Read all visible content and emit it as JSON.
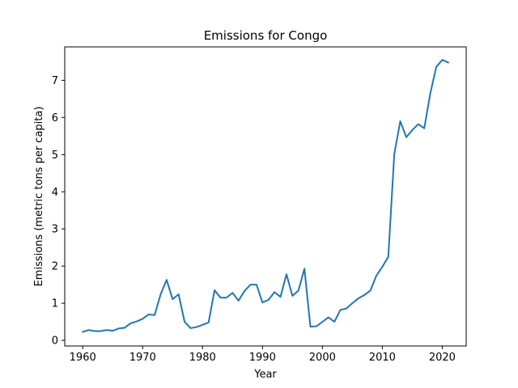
{
  "chart_data": {
    "type": "line",
    "title": "Emissions for Congo",
    "xlabel": "Year",
    "ylabel": "Emissions (metric tons per capita)",
    "xlim": [
      1957,
      2024
    ],
    "ylim": [
      -0.15,
      7.9
    ],
    "xticks": [
      1960,
      1970,
      1980,
      1990,
      2000,
      2010,
      2020
    ],
    "yticks": [
      0,
      1,
      2,
      3,
      4,
      5,
      6,
      7
    ],
    "grid": false,
    "legend": "none",
    "series": [
      {
        "color": "#1f77b4",
        "x": [
          1960,
          1961,
          1962,
          1963,
          1964,
          1965,
          1966,
          1967,
          1968,
          1969,
          1970,
          1971,
          1972,
          1973,
          1974,
          1975,
          1976,
          1977,
          1978,
          1979,
          1980,
          1981,
          1982,
          1983,
          1984,
          1985,
          1986,
          1987,
          1988,
          1989,
          1990,
          1991,
          1992,
          1993,
          1994,
          1995,
          1996,
          1997,
          1998,
          1999,
          2000,
          2001,
          2002,
          2003,
          2004,
          2005,
          2006,
          2007,
          2008,
          2009,
          2010,
          2011,
          2012,
          2013,
          2014,
          2015,
          2016,
          2017,
          2018,
          2019,
          2020,
          2021
        ],
        "values": [
          0.23,
          0.28,
          0.25,
          0.25,
          0.28,
          0.26,
          0.32,
          0.34,
          0.46,
          0.51,
          0.58,
          0.7,
          0.68,
          1.24,
          1.63,
          1.11,
          1.24,
          0.5,
          0.33,
          0.36,
          0.42,
          0.48,
          1.35,
          1.15,
          1.15,
          1.28,
          1.07,
          1.33,
          1.5,
          1.5,
          1.02,
          1.09,
          1.3,
          1.17,
          1.78,
          1.2,
          1.34,
          1.93,
          0.37,
          0.38,
          0.5,
          0.62,
          0.5,
          0.82,
          0.86,
          1.0,
          1.13,
          1.22,
          1.34,
          1.74,
          1.98,
          2.25,
          5.02,
          5.9,
          5.47,
          5.66,
          5.82,
          5.71,
          6.64,
          7.36,
          7.55,
          7.48
        ]
      }
    ]
  }
}
